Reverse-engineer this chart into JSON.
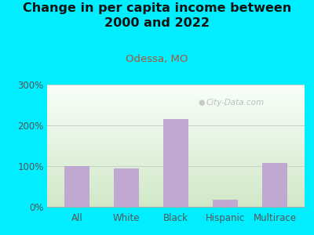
{
  "title": "Change in per capita income between\n2000 and 2022",
  "subtitle": "Odessa, MO",
  "categories": [
    "All",
    "White",
    "Black",
    "Hispanic",
    "Multirace"
  ],
  "values": [
    100,
    95,
    215,
    18,
    108
  ],
  "bar_color": "#c0a8d0",
  "title_fontsize": 11.5,
  "subtitle_fontsize": 9.5,
  "subtitle_color": "#aa5533",
  "title_color": "#111111",
  "background_outer": "#00eeff",
  "ylim": [
    0,
    300
  ],
  "yticks": [
    0,
    100,
    200,
    300
  ],
  "ytick_labels": [
    "0%",
    "100%",
    "200%",
    "300%"
  ],
  "watermark": "City-Data.com",
  "grid_color": "#cccccc",
  "tick_label_color": "#555555"
}
